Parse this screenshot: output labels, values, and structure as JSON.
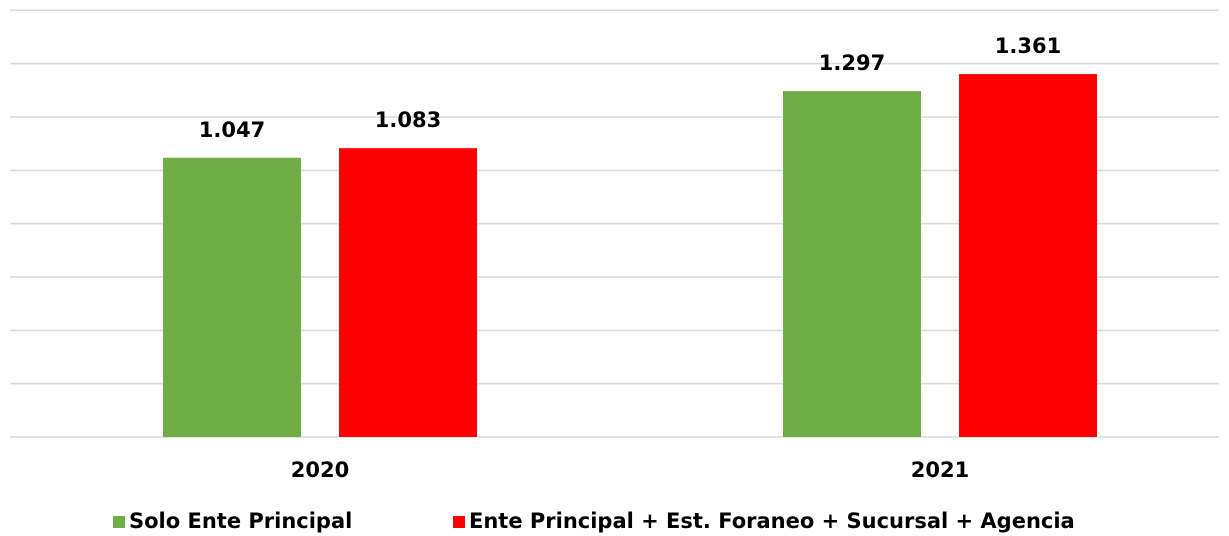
{
  "chart_data": {
    "type": "bar",
    "categories": [
      "2020",
      "2021"
    ],
    "series": [
      {
        "name": "Solo Ente Principal",
        "color": "#70ad47",
        "values": [
          1047,
          1297
        ],
        "value_labels": [
          "1.047",
          "1.297"
        ]
      },
      {
        "name": "Ente Principal + Est. Foraneo + Sucursal + Agencia",
        "color": "#ff0000",
        "values": [
          1083,
          1361
        ],
        "value_labels": [
          "1.083",
          "1.361"
        ]
      }
    ],
    "ylim": [
      0,
      1600
    ],
    "yticks": [
      0,
      200,
      400,
      600,
      800,
      1000,
      1200,
      1400,
      1600
    ],
    "grid": true,
    "legend": "bottom"
  }
}
